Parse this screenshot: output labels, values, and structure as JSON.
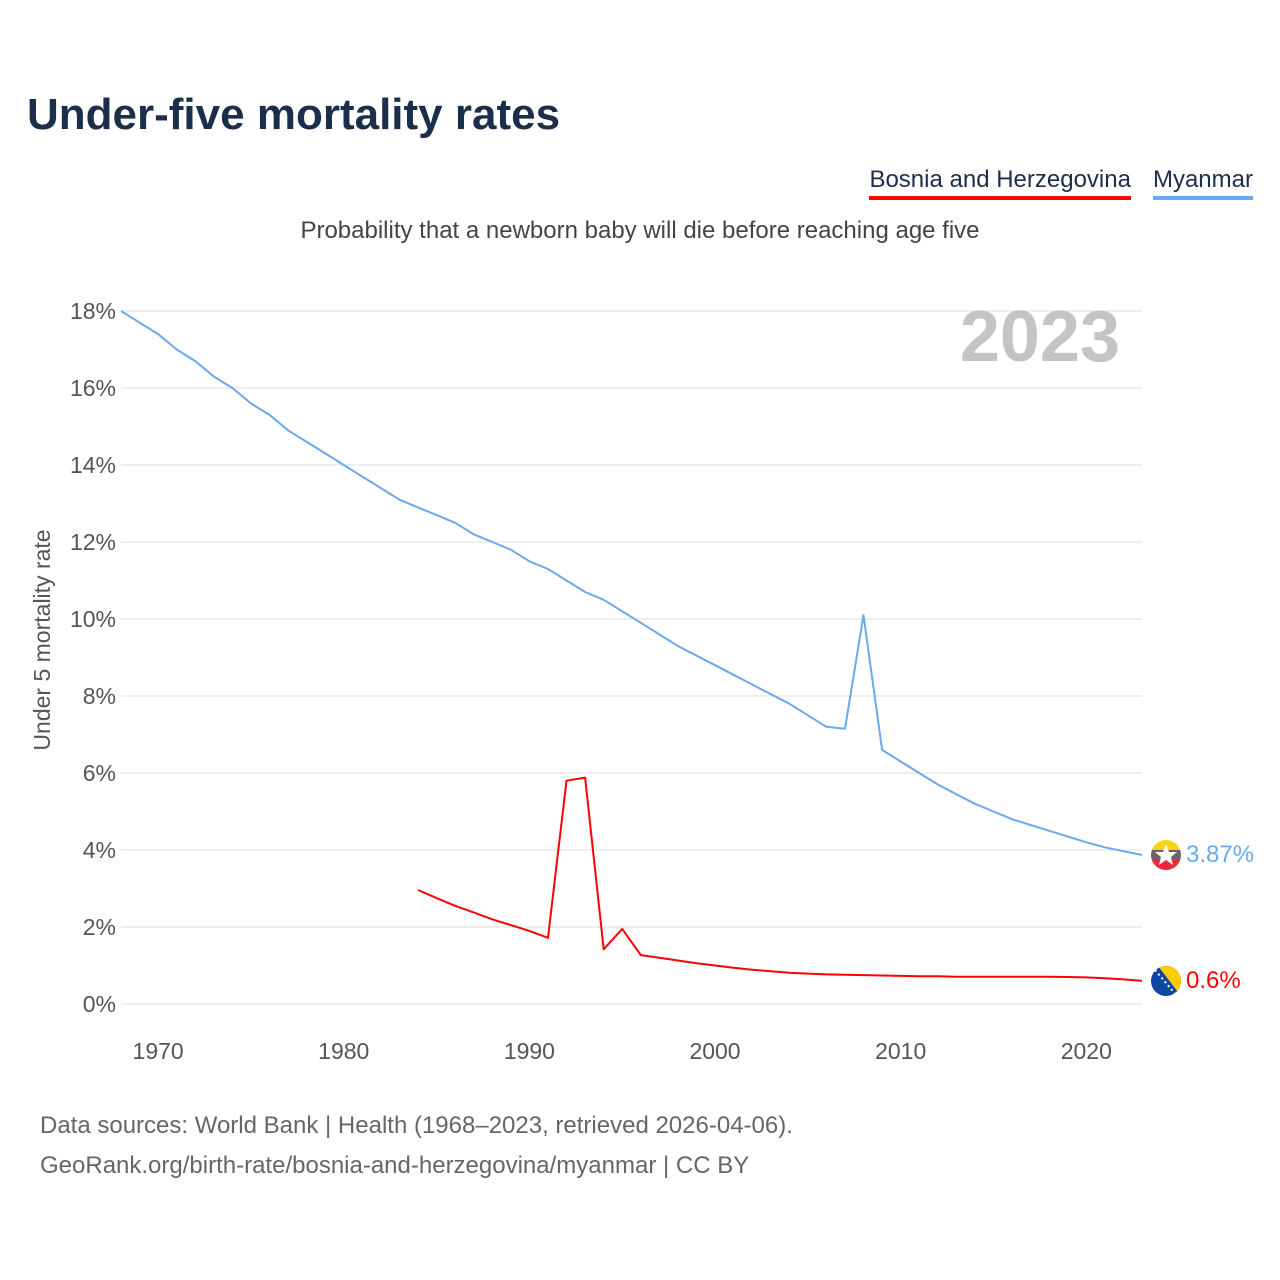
{
  "title": "Under-five mortality rates",
  "subtitle": "Probability that a newborn baby will die before reaching age five",
  "footer": {
    "line1": "Data sources: World Bank | Health (1968–2023, retrieved 2026-04-06).",
    "line2": "GeoRank.org/birth-rate/bosnia-and-herzegovina/myanmar | CC BY"
  },
  "chart_data": {
    "type": "line",
    "title": "Under-five mortality rates",
    "ylabel": "Under 5 mortality rate",
    "xlabel": "",
    "year_label": "2023",
    "xlim": [
      1968,
      2023
    ],
    "ylim": [
      0,
      18
    ],
    "xticks": [
      1970,
      1980,
      1990,
      2000,
      2010,
      2020
    ],
    "yticks": [
      0,
      2,
      4,
      6,
      8,
      10,
      12,
      14,
      16,
      18
    ],
    "ytick_labels": [
      "0%",
      "2%",
      "4%",
      "6%",
      "8%",
      "10%",
      "12%",
      "14%",
      "16%",
      "18%"
    ],
    "grid": true,
    "legend_position": "top-right",
    "series": [
      {
        "name": "Bosnia and Herzegovina",
        "color": "#ff0000",
        "end_label": "0.6%",
        "flag": "bosnia-flag",
        "x": [
          1984,
          1985,
          1986,
          1987,
          1988,
          1989,
          1990,
          1991,
          1992,
          1993,
          1994,
          1995,
          1996,
          1997,
          1998,
          1999,
          2000,
          2001,
          2002,
          2003,
          2004,
          2005,
          2006,
          2007,
          2008,
          2009,
          2010,
          2011,
          2012,
          2013,
          2014,
          2015,
          2016,
          2017,
          2018,
          2019,
          2020,
          2021,
          2022,
          2023
        ],
        "values": [
          2.96,
          2.75,
          2.55,
          2.38,
          2.2,
          2.05,
          1.9,
          1.72,
          5.8,
          5.88,
          1.42,
          1.95,
          1.27,
          1.2,
          1.13,
          1.06,
          1.0,
          0.94,
          0.89,
          0.85,
          0.81,
          0.79,
          0.77,
          0.76,
          0.75,
          0.74,
          0.73,
          0.72,
          0.72,
          0.71,
          0.71,
          0.71,
          0.71,
          0.71,
          0.71,
          0.7,
          0.69,
          0.67,
          0.64,
          0.6
        ]
      },
      {
        "name": "Myanmar",
        "color": "#6aa9ea",
        "end_label": "3.87%",
        "flag": "myanmar-flag",
        "x": [
          1968,
          1969,
          1970,
          1971,
          1972,
          1973,
          1974,
          1975,
          1976,
          1977,
          1978,
          1979,
          1980,
          1981,
          1982,
          1983,
          1984,
          1985,
          1986,
          1987,
          1988,
          1989,
          1990,
          1991,
          1992,
          1993,
          1994,
          1995,
          1996,
          1997,
          1998,
          1999,
          2000,
          2001,
          2002,
          2003,
          2004,
          2005,
          2006,
          2007,
          2008,
          2009,
          2010,
          2011,
          2012,
          2013,
          2014,
          2015,
          2016,
          2017,
          2018,
          2019,
          2020,
          2021,
          2022,
          2023
        ],
        "values": [
          18.0,
          17.7,
          17.4,
          17.0,
          16.7,
          16.3,
          16.0,
          15.6,
          15.3,
          14.9,
          14.6,
          14.3,
          14.0,
          13.7,
          13.4,
          13.1,
          12.9,
          12.7,
          12.5,
          12.2,
          12.0,
          11.8,
          11.5,
          11.3,
          11.0,
          10.7,
          10.5,
          10.2,
          9.9,
          9.6,
          9.3,
          9.05,
          8.8,
          8.55,
          8.3,
          8.05,
          7.8,
          7.5,
          7.2,
          7.15,
          10.1,
          6.6,
          6.3,
          6.0,
          5.7,
          5.45,
          5.2,
          5.0,
          4.8,
          4.65,
          4.5,
          4.35,
          4.2,
          4.07,
          3.97,
          3.87
        ]
      }
    ]
  }
}
